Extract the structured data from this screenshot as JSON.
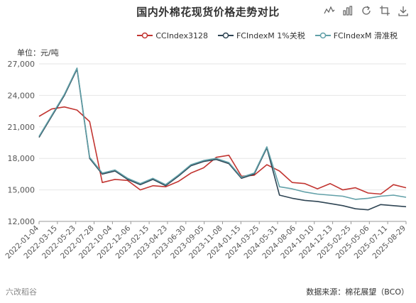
{
  "title": "国内外棉花现货价格走势对比",
  "unit_label": "单位：元/吨",
  "source_label": "数据来源：棉花展望（BCO）",
  "footer_watermark": "六改稻谷",
  "toolbox": [
    "line-chart-icon",
    "bar-chart-icon",
    "refresh-icon",
    "crop-icon",
    "download-icon"
  ],
  "chart_data": {
    "type": "line",
    "title": "国内外棉花现货价格走势对比",
    "ylabel": "单位：元/吨",
    "ylim": [
      12000,
      27000
    ],
    "y_ticks": [
      "12,000",
      "15,000",
      "18,000",
      "21,000",
      "24,000",
      "27,000"
    ],
    "y_tick_values": [
      12000,
      15000,
      18000,
      21000,
      24000,
      27000
    ],
    "x_ticks": [
      "2022-01-04",
      "2022-03-15",
      "2022-05-23",
      "2022-07-28",
      "2022-10-04",
      "2022-12-06",
      "2023-02-15",
      "2023-04-23",
      "2023-06-30",
      "2023-09-05",
      "2023-11-08",
      "2024-01-15",
      "2024-03-25",
      "2024-05-31",
      "2024-08-06",
      "2024-10-10",
      "2024-12-13",
      "2025-02-25",
      "2025-05-06",
      "2025-07-11",
      "2025-08-29"
    ],
    "grid": "horizontal",
    "legend_position": "top-right",
    "series": [
      {
        "name": "CCIndex3128",
        "color": "#c23531",
        "values": [
          22000,
          22700,
          22900,
          22600,
          21500,
          15700,
          16000,
          15900,
          15000,
          15400,
          15300,
          15800,
          16600,
          17100,
          18100,
          18300,
          16300,
          16400,
          17400,
          16800,
          15700,
          15600,
          15100,
          15600,
          15000,
          15200,
          14700,
          14600,
          15500,
          15200
        ]
      },
      {
        "name": "FCIndexM 1%关税",
        "color": "#2f4554",
        "values": [
          20000,
          22000,
          24000,
          26500,
          18000,
          16500,
          16800,
          16000,
          15500,
          16000,
          15400,
          16300,
          17300,
          17700,
          17900,
          17500,
          16100,
          16500,
          19000,
          14500,
          14200,
          14000,
          13900,
          13700,
          13500,
          13200,
          13100,
          13600,
          13500,
          13400
        ]
      },
      {
        "name": "FCIndexM 滑准税",
        "color": "#61a0a8",
        "values": [
          20100,
          22100,
          24100,
          26600,
          18100,
          16600,
          16900,
          16100,
          15600,
          16100,
          15500,
          16400,
          17400,
          17800,
          18000,
          17600,
          16200,
          16600,
          19100,
          15300,
          15100,
          14800,
          14600,
          14500,
          14400,
          14100,
          14200,
          14400,
          14500,
          14300
        ]
      }
    ]
  }
}
